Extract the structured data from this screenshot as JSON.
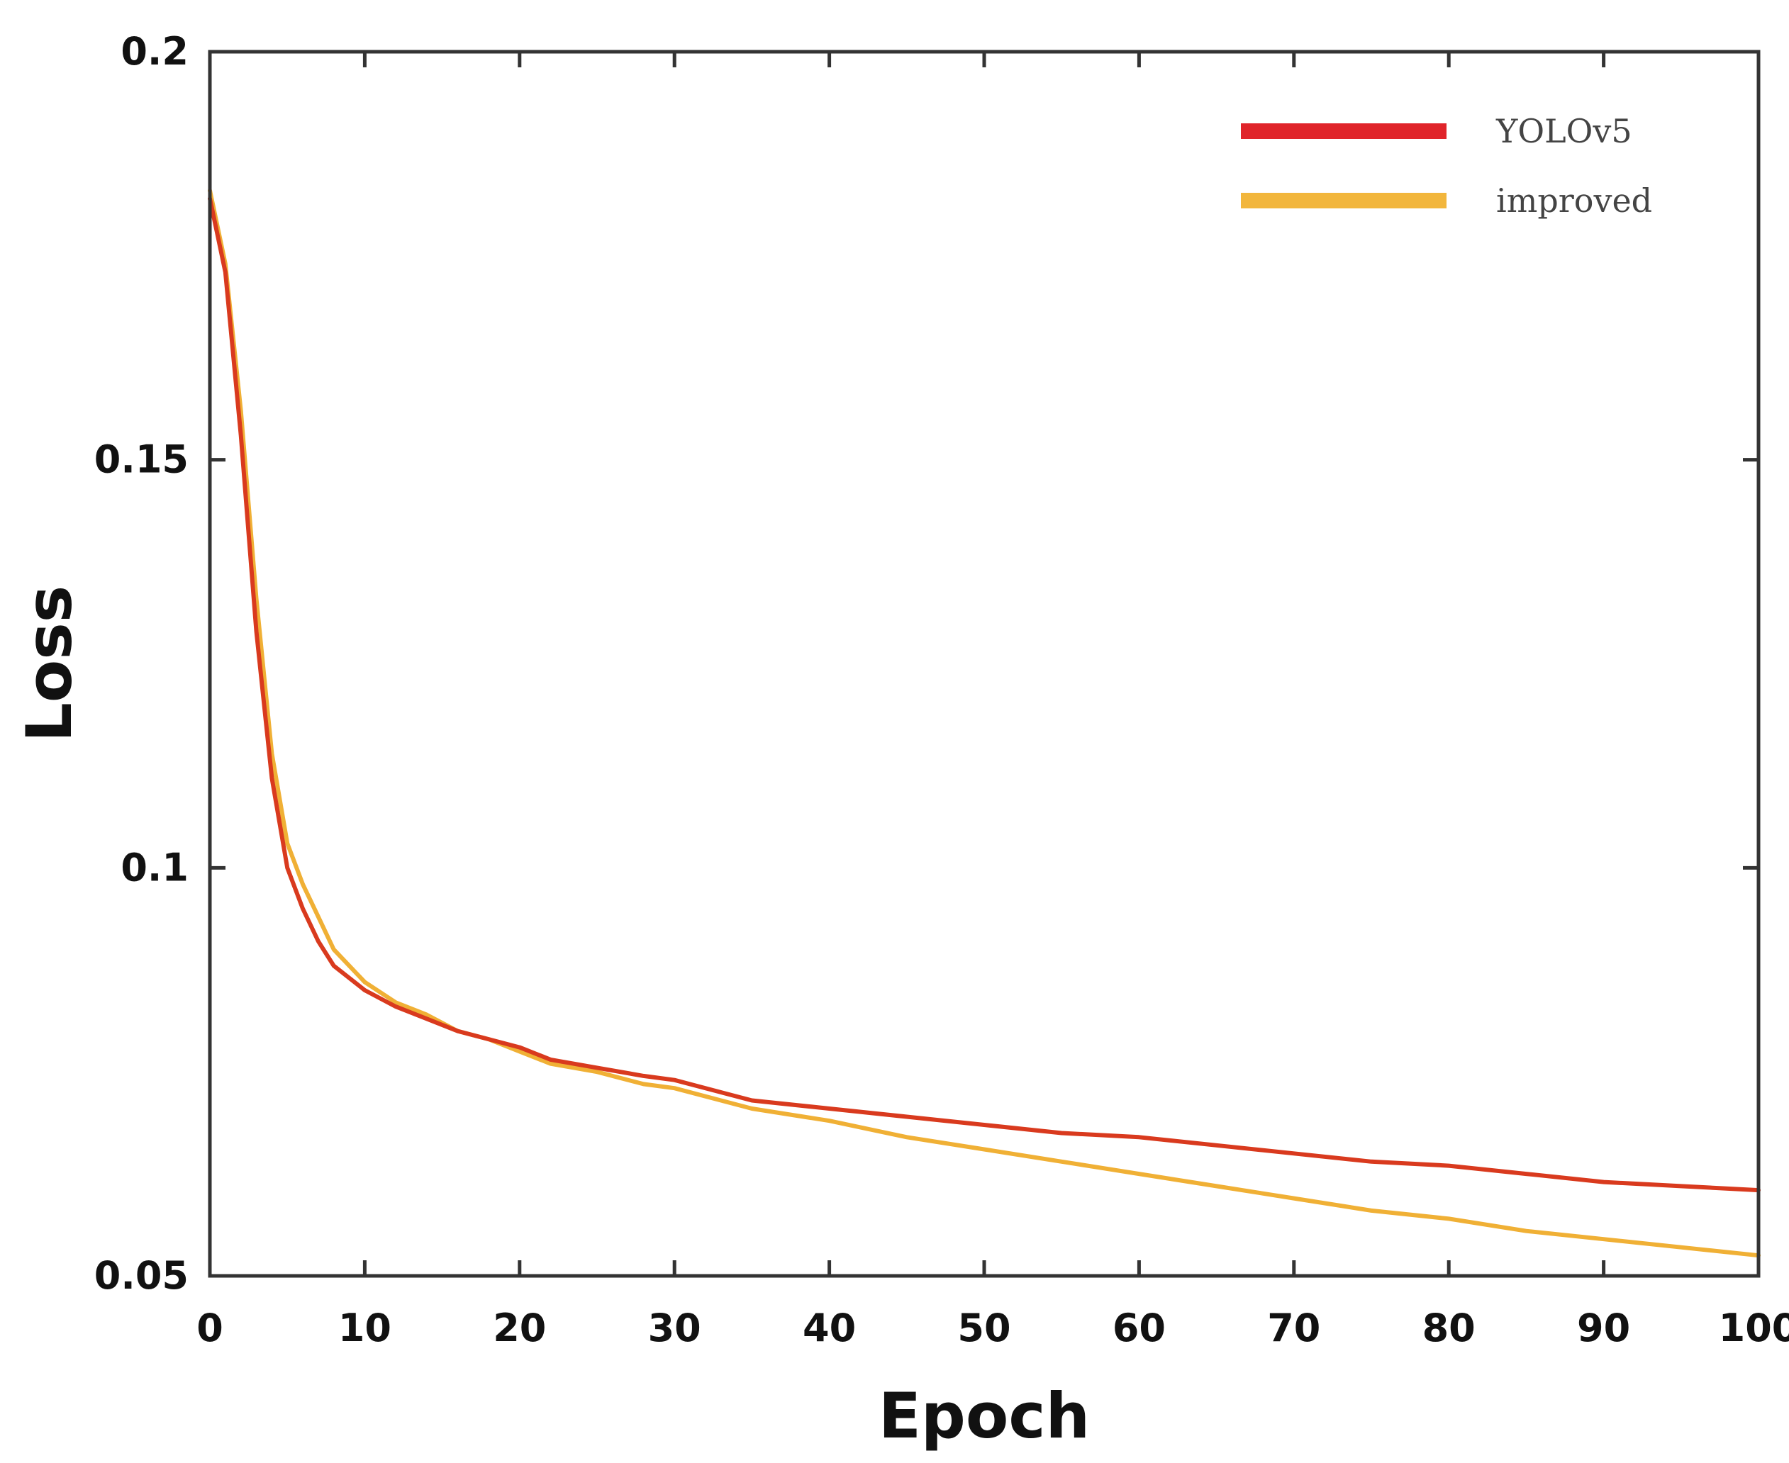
{
  "chart_data": {
    "type": "line",
    "title": "",
    "xlabel": "Epoch",
    "ylabel": "Loss",
    "xlim": [
      0,
      100
    ],
    "ylim": [
      0.05,
      0.2
    ],
    "xticks": [
      0,
      10,
      20,
      30,
      40,
      50,
      60,
      70,
      80,
      90,
      100
    ],
    "yticks": [
      0.05,
      0.1,
      0.15,
      0.2
    ],
    "xtick_labels": [
      "0",
      "10",
      "20",
      "30",
      "40",
      "50",
      "60",
      "70",
      "80",
      "90",
      "100"
    ],
    "ytick_labels": [
      "0.05",
      "0.1",
      "0.15",
      "0.2"
    ],
    "grid": false,
    "legend": "top-right",
    "series": [
      {
        "name": "YOLOv5",
        "color": "#d93a1e",
        "legend_color": "#e0242a",
        "x": [
          0,
          1,
          2,
          3,
          4,
          5,
          6,
          7,
          8,
          10,
          12,
          14,
          16,
          18,
          20,
          22,
          25,
          28,
          30,
          35,
          40,
          45,
          50,
          55,
          60,
          65,
          70,
          75,
          80,
          85,
          90,
          95,
          100
        ],
        "y": [
          0.182,
          0.173,
          0.153,
          0.129,
          0.111,
          0.1,
          0.095,
          0.091,
          0.088,
          0.085,
          0.083,
          0.0815,
          0.08,
          0.079,
          0.078,
          0.0765,
          0.0755,
          0.0745,
          0.074,
          0.0715,
          0.0705,
          0.0695,
          0.0685,
          0.0675,
          0.067,
          0.066,
          0.065,
          0.064,
          0.0635,
          0.0625,
          0.0615,
          0.061,
          0.0605
        ]
      },
      {
        "name": "improved",
        "color": "#f0b035",
        "legend_color": "#f2b63c",
        "x": [
          0,
          1,
          2,
          3,
          4,
          5,
          6,
          7,
          8,
          10,
          12,
          14,
          16,
          18,
          20,
          22,
          25,
          28,
          30,
          35,
          40,
          45,
          50,
          55,
          60,
          65,
          70,
          75,
          80,
          85,
          90,
          95,
          100
        ],
        "y": [
          0.183,
          0.174,
          0.156,
          0.133,
          0.114,
          0.103,
          0.098,
          0.094,
          0.09,
          0.086,
          0.0835,
          0.082,
          0.08,
          0.079,
          0.0775,
          0.076,
          0.075,
          0.0735,
          0.073,
          0.0705,
          0.069,
          0.067,
          0.0655,
          0.064,
          0.0625,
          0.061,
          0.0595,
          0.058,
          0.057,
          0.0555,
          0.0545,
          0.0535,
          0.0525
        ]
      }
    ]
  }
}
